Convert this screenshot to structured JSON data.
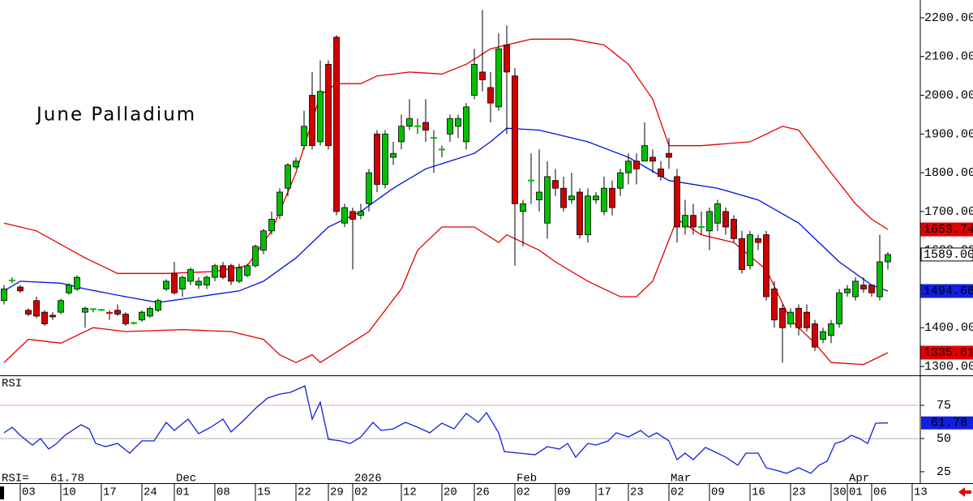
{
  "chart_data": [
    {
      "type": "candlestick",
      "title": "June Palladium",
      "xlim": [
        -0.5,
        113
      ],
      "ylim": [
        1277,
        2246
      ],
      "up_color": "#00c000",
      "down_color": "#d00000",
      "yticks": [
        {
          "value": 2200,
          "label": "2200.00"
        },
        {
          "value": 2100,
          "label": "2100.00"
        },
        {
          "value": 2000,
          "label": "2000.00"
        },
        {
          "value": 1900,
          "label": "1900.00"
        },
        {
          "value": 1800,
          "label": "1800.00"
        },
        {
          "value": 1700,
          "label": "1700.00"
        },
        {
          "value": 1600,
          "label": "1600.00"
        },
        {
          "value": 1500,
          "label": "1500.00"
        },
        {
          "value": 1400,
          "label": "1400.00"
        },
        {
          "value": 1300,
          "label": "1300.00"
        }
      ],
      "open": [
        1470,
        1520,
        1505,
        1445,
        1470,
        1440,
        1432,
        1440,
        1490,
        1500,
        1440,
        1445,
        1445,
        1440,
        1445,
        1435,
        1410,
        1420,
        1430,
        1445,
        1500,
        1540,
        1500,
        1520,
        1510,
        1510,
        1530,
        1560,
        1560,
        1520,
        1535,
        1560,
        1600,
        1650,
        1690,
        1760,
        1815,
        1870,
        2000,
        1880,
        2080,
        2150,
        1670,
        1700,
        1690,
        1720,
        1900,
        1770,
        1840,
        1880,
        1920,
        1920,
        1930,
        1890,
        1860,
        1900,
        1920,
        1880,
        2000,
        2060,
        2020,
        1970,
        2130,
        2050,
        1700,
        1780,
        1730,
        1670,
        1780,
        1760,
        1730,
        1750,
        1640,
        1730,
        1700,
        1760,
        1760,
        1800,
        1830,
        1830,
        1840,
        1810,
        1850,
        1790,
        1660,
        1690,
        1660,
        1650,
        1670,
        1700,
        1680,
        1630,
        1560,
        1630,
        1640,
        1500,
        1450,
        1410,
        1450,
        1440,
        1410,
        1370,
        1380,
        1410,
        1490,
        1480,
        1510,
        1510,
        1480,
        1570
      ],
      "high": [
        1510,
        1530,
        1510,
        1450,
        1480,
        1445,
        1440,
        1475,
        1515,
        1535,
        1455,
        1450,
        1448,
        1445,
        1460,
        1440,
        1415,
        1445,
        1455,
        1475,
        1525,
        1570,
        1535,
        1555,
        1530,
        1535,
        1565,
        1570,
        1565,
        1565,
        1565,
        1615,
        1655,
        1700,
        1760,
        1825,
        1840,
        1960,
        2060,
        2090,
        2090,
        2155,
        1720,
        1710,
        1720,
        1810,
        1910,
        1910,
        1880,
        1950,
        1990,
        1940,
        1990,
        1910,
        1870,
        1950,
        1950,
        1980,
        2120,
        2220,
        2060,
        2160,
        2180,
        2070,
        1730,
        1850,
        1860,
        1830,
        1810,
        1790,
        1800,
        1760,
        1760,
        1750,
        1790,
        1780,
        1810,
        1850,
        1850,
        1930,
        1860,
        1830,
        1890,
        1810,
        1730,
        1720,
        1700,
        1710,
        1730,
        1710,
        1690,
        1650,
        1650,
        1640,
        1650,
        1520,
        1460,
        1450,
        1460,
        1460,
        1420,
        1400,
        1420,
        1500,
        1510,
        1530,
        1530,
        1510,
        1640,
        1595
      ],
      "low": [
        1460,
        1515,
        1490,
        1430,
        1425,
        1405,
        1420,
        1435,
        1485,
        1495,
        1400,
        1440,
        1443,
        1420,
        1430,
        1405,
        1408,
        1415,
        1425,
        1440,
        1495,
        1485,
        1480,
        1510,
        1500,
        1500,
        1520,
        1525,
        1510,
        1515,
        1530,
        1555,
        1590,
        1640,
        1680,
        1740,
        1810,
        1860,
        1860,
        1870,
        1860,
        1690,
        1660,
        1550,
        1680,
        1700,
        1750,
        1760,
        1820,
        1860,
        1910,
        1900,
        1880,
        1800,
        1840,
        1880,
        1890,
        1860,
        1990,
        2010,
        1930,
        1960,
        1900,
        1560,
        1610,
        1720,
        1700,
        1630,
        1740,
        1700,
        1720,
        1630,
        1620,
        1720,
        1690,
        1690,
        1740,
        1770,
        1770,
        1830,
        1800,
        1780,
        1810,
        1620,
        1640,
        1640,
        1640,
        1600,
        1650,
        1640,
        1620,
        1540,
        1550,
        1600,
        1470,
        1400,
        1310,
        1400,
        1380,
        1390,
        1340,
        1360,
        1360,
        1400,
        1480,
        1470,
        1490,
        1480,
        1470,
        1550
      ],
      "close": [
        1500,
        1522,
        1495,
        1435,
        1430,
        1410,
        1428,
        1470,
        1510,
        1530,
        1450,
        1448,
        1446,
        1438,
        1435,
        1410,
        1412,
        1440,
        1450,
        1470,
        1520,
        1490,
        1530,
        1550,
        1520,
        1530,
        1560,
        1530,
        1520,
        1555,
        1560,
        1610,
        1650,
        1680,
        1750,
        1820,
        1830,
        1920,
        1870,
        2010,
        1870,
        1700,
        1710,
        1680,
        1700,
        1800,
        1770,
        1900,
        1850,
        1920,
        1940,
        1920,
        1910,
        1890,
        1860,
        1940,
        1940,
        1970,
        2080,
        2040,
        1980,
        2120,
        2060,
        1720,
        1720,
        1780,
        1750,
        1790,
        1760,
        1710,
        1740,
        1640,
        1740,
        1740,
        1760,
        1710,
        1800,
        1830,
        1810,
        1870,
        1830,
        1790,
        1840,
        1660,
        1690,
        1660,
        1660,
        1700,
        1720,
        1660,
        1630,
        1550,
        1640,
        1620,
        1480,
        1420,
        1400,
        1440,
        1400,
        1400,
        1350,
        1390,
        1410,
        1490,
        1500,
        1520,
        1500,
        1490,
        1570,
        1589
      ],
      "bands": [
        {
          "color": "#e00000",
          "x": [
            0,
            4,
            10,
            14,
            20,
            26,
            30,
            33,
            36,
            39,
            41,
            44,
            46,
            50,
            54,
            57,
            60,
            62,
            65,
            70,
            74,
            77,
            80,
            82,
            86,
            92,
            96,
            98,
            102,
            105,
            107,
            109
          ],
          "values": [
            1670,
            1650,
            1580,
            1540,
            1540,
            1545,
            1560,
            1650,
            1800,
            2000,
            2030,
            2030,
            2050,
            2060,
            2055,
            2080,
            2120,
            2130,
            2145,
            2145,
            2130,
            2080,
            1990,
            1870,
            1870,
            1880,
            1920,
            1910,
            1800,
            1720,
            1680,
            1653.74
          ]
        },
        {
          "color": "#0010e0",
          "x": [
            0,
            2,
            7,
            10,
            15,
            19,
            24,
            29,
            32,
            36,
            40,
            44,
            48,
            52,
            55,
            58,
            60,
            62,
            66,
            72,
            77,
            82,
            88,
            93,
            98,
            103,
            107,
            109
          ],
          "values": [
            1495,
            1520,
            1515,
            1500,
            1480,
            1465,
            1480,
            1495,
            1520,
            1580,
            1660,
            1700,
            1760,
            1810,
            1830,
            1850,
            1880,
            1915,
            1910,
            1880,
            1840,
            1780,
            1760,
            1730,
            1670,
            1570,
            1510,
            1494.68
          ]
        },
        {
          "color": "#e00000",
          "x": [
            0,
            3,
            7,
            11,
            15,
            22,
            28,
            32,
            34,
            36,
            38,
            39,
            42,
            45,
            49,
            51,
            54,
            58,
            61,
            62,
            66,
            68,
            72,
            76,
            78,
            80,
            83,
            86,
            90,
            94,
            97,
            100,
            102,
            106,
            109
          ],
          "values": [
            1310,
            1370,
            1360,
            1400,
            1390,
            1395,
            1390,
            1370,
            1330,
            1310,
            1330,
            1310,
            1350,
            1390,
            1500,
            1600,
            1660,
            1660,
            1620,
            1640,
            1600,
            1570,
            1520,
            1480,
            1480,
            1520,
            1680,
            1640,
            1620,
            1550,
            1420,
            1360,
            1310,
            1305,
            1335.61
          ]
        }
      ],
      "price_labels": [
        {
          "value": 1653.74,
          "label": "1653.74",
          "fill": "#e00000",
          "text_color": "#ffffff"
        },
        {
          "value": 1589,
          "label": "1589.00",
          "fill": "#ffffff",
          "text_color": "#000000"
        },
        {
          "value": 1494.68,
          "label": "1494.68",
          "fill": "#1020e0",
          "text_color": "#ffffff"
        },
        {
          "value": 1335.61,
          "label": "1335.61",
          "fill": "#e00000",
          "text_color": "#ffffff"
        }
      ]
    },
    {
      "type": "line",
      "label": "RSI",
      "readout_label": "RSI=",
      "color": "#1020e0",
      "xlim": [
        -0.5,
        113
      ],
      "ylim": [
        17,
        97.6
      ],
      "yticks": [
        75,
        50,
        25
      ],
      "levels": [
        {
          "value": 75,
          "color": "#f0a0a0"
        },
        {
          "value": 50,
          "color": "#b0b0b0"
        }
      ],
      "x": [
        0,
        1,
        2,
        3.5,
        4.5,
        5.5,
        6.5,
        7.5,
        9.5,
        10.5,
        11.3,
        12.5,
        14,
        15.5,
        17,
        18.5,
        20,
        21,
        22.7,
        24,
        25.5,
        27,
        28,
        29.5,
        31,
        32.5,
        34,
        35.3,
        37.1,
        38,
        39,
        40,
        41.5,
        42.7,
        44,
        45.5,
        46.5,
        48,
        49.5,
        51,
        52.5,
        54,
        55.5,
        57,
        58.5,
        59.5,
        61,
        61.7,
        63.5,
        65.5,
        67,
        68.5,
        69.5,
        70.5,
        72,
        73,
        74.5,
        75.5,
        77,
        78.5,
        79.5,
        80.5,
        82,
        83,
        84,
        85,
        86.5,
        88,
        89,
        90.5,
        91.5,
        93,
        94,
        95.5,
        96.5,
        98,
        99.5,
        100.5,
        101.5,
        102.5,
        103.5,
        104.5,
        105.5,
        106.5,
        107.5,
        109
      ],
      "values": [
        54.3,
        58.5,
        52.4,
        45.1,
        50,
        42.1,
        46.3,
        52.4,
        60.4,
        57.3,
        46.3,
        43.9,
        46.3,
        39,
        48.2,
        48.2,
        62.2,
        56.1,
        64.6,
        53.7,
        58.5,
        64.6,
        54.9,
        63.4,
        72.6,
        80.5,
        83.5,
        84.8,
        89.6,
        64.6,
        77.4,
        49.4,
        48.2,
        46.3,
        51.2,
        62.2,
        56.1,
        57.3,
        62.2,
        58.5,
        54.3,
        61.6,
        57.3,
        68.9,
        62.2,
        69.5,
        54.3,
        40.2,
        39,
        37.8,
        43.9,
        42.1,
        46.3,
        35.9,
        46.3,
        45.1,
        48.2,
        54.3,
        51.2,
        56.1,
        51.2,
        54.3,
        48.2,
        34.1,
        39,
        34.1,
        43.3,
        39,
        36,
        29.9,
        39,
        39,
        28,
        25.6,
        23.8,
        28,
        23.8,
        29.9,
        32.9,
        46.3,
        48.2,
        52.4,
        50,
        46.3,
        61.6,
        61.78
      ],
      "last_label": {
        "value": 61.78,
        "label": "61.78"
      },
      "xticks": [
        {
          "value": 2,
          "label": "03"
        },
        {
          "value": 7,
          "label": "10"
        },
        {
          "value": 12,
          "label": "17"
        },
        {
          "value": 17,
          "label": "24"
        },
        {
          "value": 21,
          "label": "01"
        },
        {
          "value": 26,
          "label": "08"
        },
        {
          "value": 31,
          "label": "15"
        },
        {
          "value": 36,
          "label": "22"
        },
        {
          "value": 40,
          "label": "29"
        },
        {
          "value": 43,
          "label": "02"
        },
        {
          "value": 49,
          "label": "12"
        },
        {
          "value": 54,
          "label": "20"
        },
        {
          "value": 58,
          "label": "26"
        },
        {
          "value": 63,
          "label": "02"
        },
        {
          "value": 68,
          "label": "09"
        },
        {
          "value": 73,
          "label": "17"
        },
        {
          "value": 77,
          "label": "23"
        },
        {
          "value": 82,
          "label": "02"
        },
        {
          "value": 87,
          "label": "09"
        },
        {
          "value": 92,
          "label": "16"
        },
        {
          "value": 97,
          "label": "23"
        },
        {
          "value": 102,
          "label": "30"
        },
        {
          "value": 104,
          "label": "01"
        },
        {
          "value": 107,
          "label": "06"
        },
        {
          "value": 112,
          "label": "13"
        }
      ],
      "month_labels": [
        {
          "value": 21,
          "label": "Dec"
        },
        {
          "value": 43,
          "label": "2026"
        },
        {
          "value": 63,
          "label": "Feb"
        },
        {
          "value": 82,
          "label": "Mar"
        },
        {
          "value": 104,
          "label": "Apr"
        }
      ]
    }
  ]
}
